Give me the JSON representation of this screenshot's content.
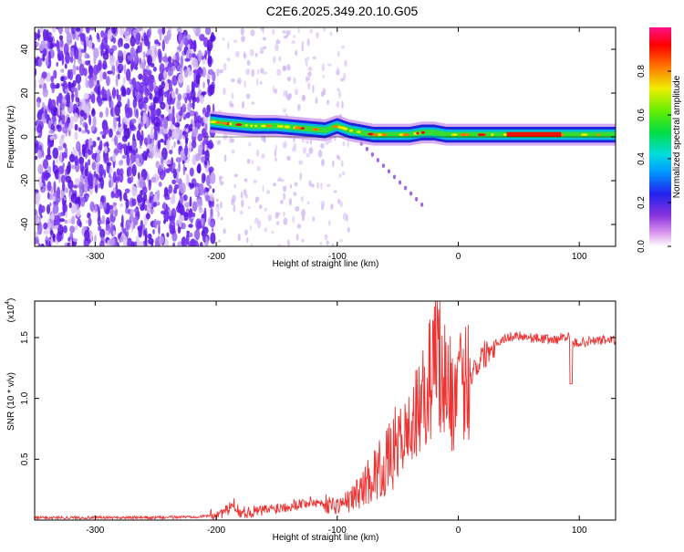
{
  "title": "C2E6.2025.349.20.10.G05",
  "chart_data": [
    {
      "type": "heatmap",
      "xlabel": "Height of straight line (km)",
      "ylabel": "Frequency (Hz)",
      "xlim": [
        -350,
        130
      ],
      "ylim": [
        -50,
        50
      ],
      "x_ticks": [
        -300,
        -200,
        -100,
        0,
        100
      ],
      "y_ticks": [
        -40,
        -20,
        0,
        20,
        40
      ],
      "colorbar": {
        "label": "Normalized spectral amplitude",
        "range": [
          0,
          1
        ],
        "ticks": [
          0.0,
          0.2,
          0.4,
          0.6,
          0.8
        ],
        "tick_labels": [
          "0.0",
          "0.2",
          "0.4",
          "0.6",
          "0.8"
        ]
      },
      "ridge": {
        "x": [
          -205,
          -190,
          -170,
          -150,
          -130,
          -110,
          -100,
          -90,
          -80,
          -70,
          -60,
          -50,
          -40,
          -30,
          -20,
          -10,
          0,
          20,
          40,
          60,
          80,
          95,
          110,
          130
        ],
        "freq": [
          7,
          6,
          5,
          5,
          4,
          3,
          5,
          3,
          2,
          1,
          1,
          1,
          1,
          2,
          2,
          1,
          1,
          1,
          1,
          1,
          1,
          1,
          1,
          1
        ]
      }
    },
    {
      "type": "line",
      "xlabel": "Height of straight line (km)",
      "ylabel": "SNR (10 * v/v)",
      "multiplier": "(x10",
      "multiplier_exp": "4",
      "xlim": [
        -350,
        130
      ],
      "ylim": [
        0,
        1.8
      ],
      "x_ticks": [
        -300,
        -200,
        -100,
        0,
        100
      ],
      "y_ticks": [
        0.5,
        1.0,
        1.5
      ],
      "y_tick_labels": [
        "0.5",
        "1.0",
        "1.5"
      ],
      "color": "#ee3333",
      "series": [
        {
          "x": [
            -350,
            -300,
            -250,
            -210,
            -200,
            -190,
            -186,
            -180,
            -160,
            -140,
            -120,
            -100,
            -90,
            -80,
            -70,
            -60,
            -50,
            -40,
            -30,
            -25,
            -20,
            -15,
            -10,
            -5,
            0,
            10,
            20,
            30,
            40,
            50,
            60,
            70,
            80,
            90,
            95,
            100,
            110,
            120,
            130
          ],
          "values": [
            0.02,
            0.02,
            0.02,
            0.03,
            0.05,
            0.08,
            0.14,
            0.06,
            0.08,
            0.12,
            0.15,
            0.12,
            0.16,
            0.25,
            0.38,
            0.45,
            0.62,
            0.75,
            0.95,
            1.1,
            1.3,
            1.2,
            1.15,
            1.0,
            1.05,
            1.2,
            1.35,
            1.45,
            1.5,
            1.52,
            1.5,
            1.49,
            1.48,
            1.52,
            1.45,
            1.46,
            1.47,
            1.48,
            1.48
          ]
        }
      ]
    }
  ]
}
